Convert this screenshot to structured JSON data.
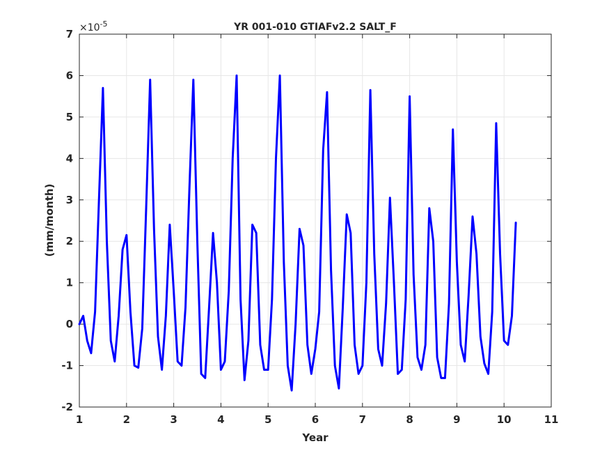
{
  "chart_data": {
    "type": "line",
    "title": "YR 001-010 GTIAFv2.2 SALT_F",
    "xlabel": "Year",
    "ylabel": "(mm/month)",
    "y_scale_label": "×10",
    "y_scale_exponent": "-5",
    "xlim": [
      1,
      11
    ],
    "ylim": [
      -2,
      7
    ],
    "x_ticks": [
      "1",
      "2",
      "3",
      "4",
      "5",
      "6",
      "7",
      "8",
      "9",
      "10",
      "11"
    ],
    "y_ticks": [
      "-2",
      "-1",
      "0",
      "1",
      "2",
      "3",
      "4",
      "5",
      "6",
      "7"
    ],
    "grid": true,
    "line_color": "#0000ff",
    "series": [
      {
        "x_start": 1.0,
        "x_step": 0.08333,
        "values": [
          0.0,
          0.2,
          -0.4,
          -0.7,
          0.3,
          3.0,
          5.7,
          2.0,
          -0.4,
          -0.9,
          0.2,
          1.8,
          2.15,
          0.3,
          -1.0,
          -1.05,
          -0.1,
          2.8,
          5.9,
          2.3,
          -0.3,
          -1.1,
          0.2,
          2.4,
          0.8,
          -0.9,
          -1.0,
          0.4,
          3.3,
          5.9,
          2.0,
          -1.2,
          -1.3,
          0.4,
          2.2,
          1.0,
          -1.1,
          -0.9,
          0.8,
          4.0,
          6.0,
          0.6,
          -1.35,
          -0.4,
          2.4,
          2.2,
          -0.5,
          -1.1,
          -1.1,
          0.6,
          4.0,
          6.0,
          1.5,
          -1.0,
          -1.6,
          0.0,
          2.3,
          1.9,
          -0.5,
          -1.2,
          -0.6,
          0.3,
          4.2,
          5.6,
          1.3,
          -1.0,
          -1.55,
          0.4,
          2.65,
          2.2,
          -0.5,
          -1.2,
          -1.0,
          1.0,
          5.65,
          1.7,
          -0.6,
          -1.0,
          0.5,
          3.05,
          1.0,
          -1.2,
          -1.1,
          0.6,
          5.5,
          1.2,
          -0.8,
          -1.1,
          -0.5,
          2.8,
          2.0,
          -0.8,
          -1.3,
          -1.3,
          0.5,
          4.7,
          1.5,
          -0.5,
          -0.9,
          0.7,
          2.6,
          1.7,
          -0.3,
          -0.95,
          -1.2,
          0.3,
          4.85,
          1.7,
          -0.4,
          -0.5,
          0.2,
          2.45
        ]
      }
    ]
  }
}
